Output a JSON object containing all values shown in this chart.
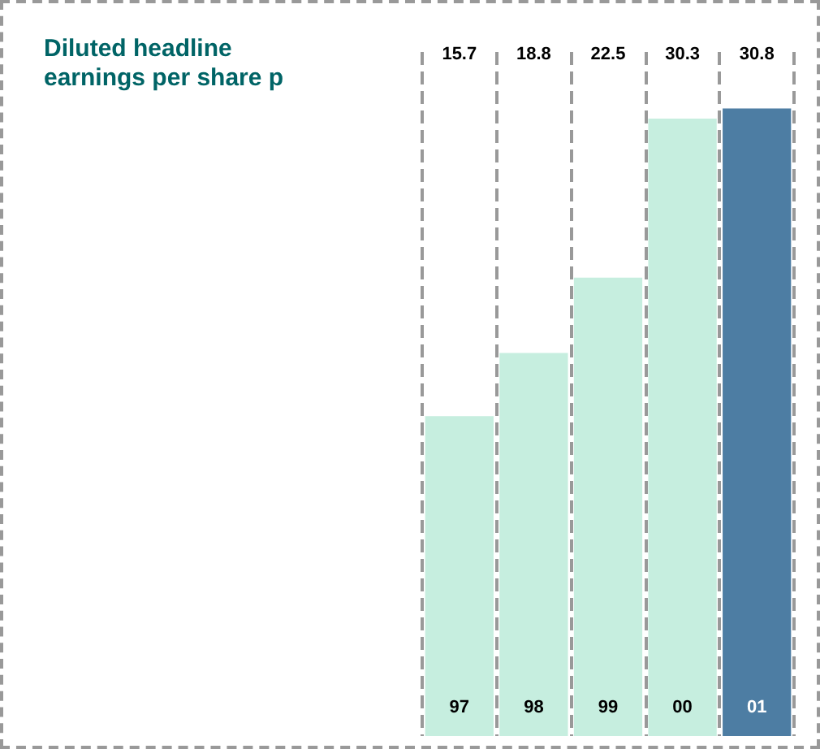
{
  "chart_data": {
    "type": "bar",
    "title": "Diluted headline earnings per share p",
    "categories": [
      "97",
      "98",
      "99",
      "00",
      "01"
    ],
    "values": [
      15.7,
      18.8,
      22.5,
      30.3,
      30.8
    ],
    "colors": [
      "#c6eedf",
      "#c6eedf",
      "#c6eedf",
      "#c6eedf",
      "#4d7da3"
    ],
    "data_labels": true,
    "grid": "x"
  }
}
